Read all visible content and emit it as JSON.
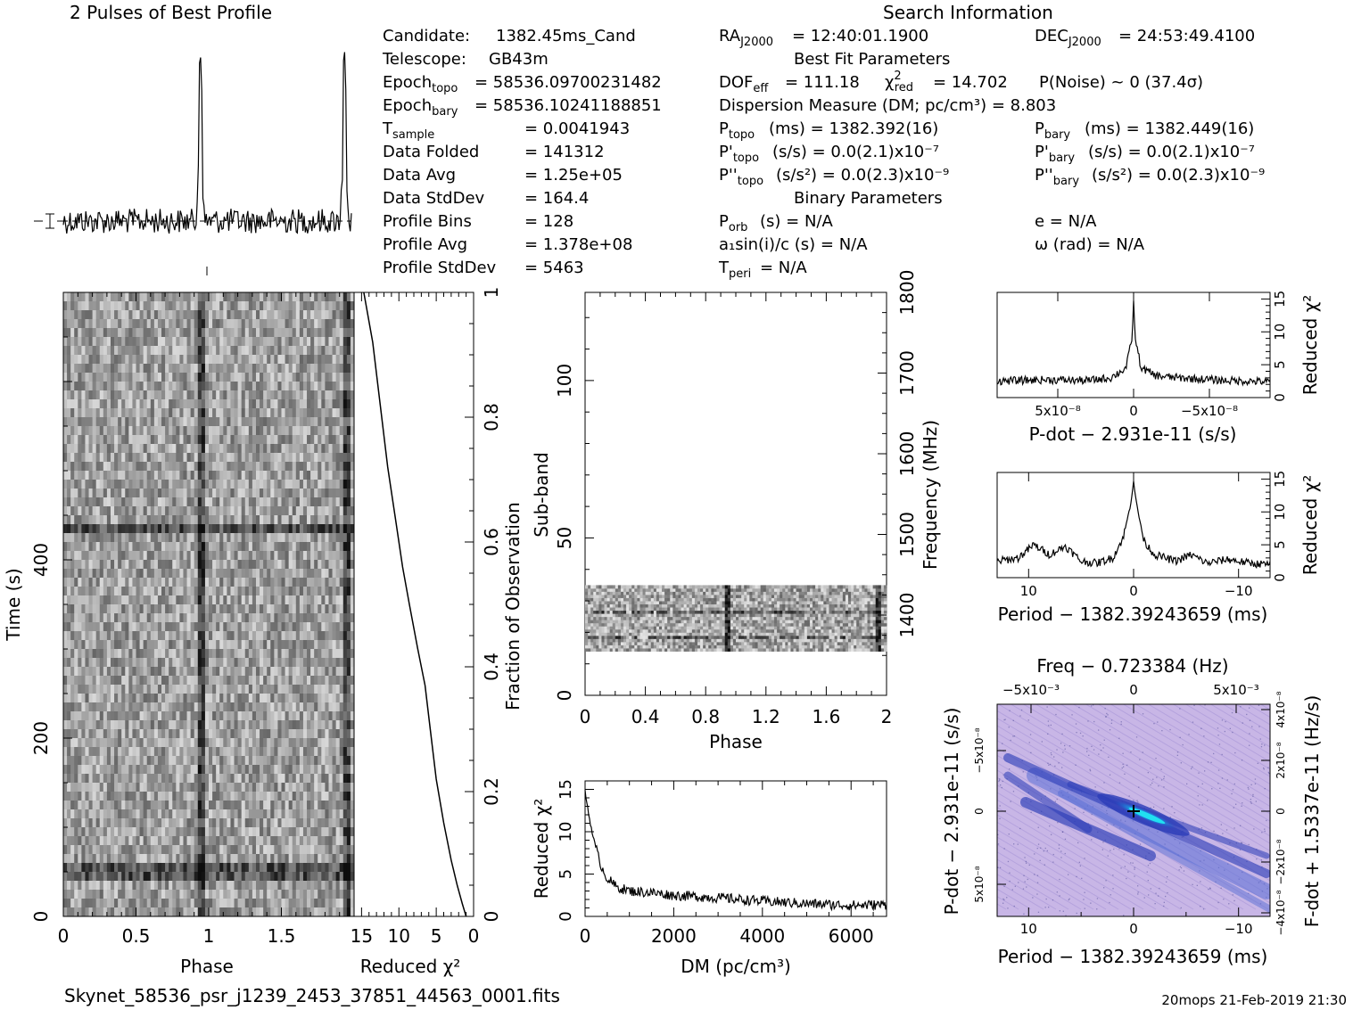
{
  "header": {
    "profile_title": "2 Pulses of Best Profile",
    "search_title": "Search Information",
    "best_fit_title": "Best Fit Parameters",
    "binary_title": "Binary Parameters"
  },
  "candidate_info": [
    {
      "label": "Candidate:",
      "value": "1382.45ms_Cand"
    },
    {
      "label": "Telescope:",
      "value": "GB43m"
    },
    {
      "label": "Epoch",
      "sub": "topo",
      "value": "= 58536.09700231482"
    },
    {
      "label": "Epoch",
      "sub": "bary",
      "value": "= 58536.10241188851"
    },
    {
      "label": "T",
      "sub": "sample",
      "value": "=   0.0041943"
    },
    {
      "label": "Data Folded",
      "value": "=   141312"
    },
    {
      "label": "Data Avg",
      "value": "=   1.25e+05"
    },
    {
      "label": "Data StdDev",
      "value": "=   164.4"
    },
    {
      "label": "Profile Bins",
      "value": "=   128"
    },
    {
      "label": "Profile Avg",
      "value": "=   1.378e+08"
    },
    {
      "label": "Profile StdDev",
      "value": "=   5463"
    }
  ],
  "search_info": {
    "ra": "= 12:40:01.1900",
    "dec": "= 24:53:49.4100",
    "dof_line": "= 111.18",
    "chi2_line": "= 14.702",
    "pnoise_line": "P(Noise) ~ 0    (37.4σ)",
    "dm_line": "Dispersion Measure (DM; pc/cm³) = 8.803",
    "p_topo": "(ms) =  1382.392(16)",
    "p_bary": "(ms) =  1382.449(16)",
    "pd_topo": "(s/s) = 0.0(2.1)x10⁻⁷",
    "pd_bary": "(s/s) = 0.0(2.1)x10⁻⁷",
    "pdd_topo": "(s/s²) = 0.0(2.3)x10⁻⁹",
    "pdd_bary": "(s/s²) = 0.0(2.3)x10⁻⁹",
    "porb": "(s) = N/A",
    "e": "e = N/A",
    "a1": "a₁sin(i)/c (s) = N/A",
    "omega": "ω (rad) = N/A",
    "tperi": "= N/A"
  },
  "labels": {
    "phase": "Phase",
    "time": "Time (s)",
    "reduced_chi2": "Reduced χ²",
    "fraction": "Fraction of Observation",
    "subband": "Sub-band",
    "frequency": "Frequency (MHz)",
    "dm_axis": "DM (pc/cm³)",
    "pdot_axis": "P-dot − 2.931e-11 (s/s)",
    "period_axis": "Period − 1382.39243659 (ms)",
    "freq_axis": "Freq − 0.723384 (Hz)",
    "fdot_axis": "F-dot + 1.5337e-11 (Hz/s)"
  },
  "footer": {
    "filename": "Skynet_58536_psr_j1239_2453_37851_44563_0001.fits",
    "stamp": "20mops 21-Feb-2019 21:30"
  },
  "chart_data": [
    {
      "type": "line",
      "title": "2 Pulses of Best Profile",
      "xlim": [
        0,
        2
      ],
      "peaks_phase": [
        0.95,
        1.95
      ],
      "peak_height_rel": 1.0,
      "baseline_rel": 0.05
    },
    {
      "type": "heatmap",
      "name": "time-vs-phase",
      "xlabel": "Phase",
      "ylabel": "Time (s)",
      "xlim": [
        0,
        2
      ],
      "ylim": [
        0,
        700
      ],
      "x_ticks": [
        "0",
        "0.5",
        "1",
        "1.5"
      ],
      "y_ticks": [
        "0",
        "200",
        "400"
      ]
    },
    {
      "type": "line",
      "name": "cumulative-reduced-chi2",
      "xlabel": "Reduced χ²",
      "ylabel": "Fraction of Observation",
      "xlim": [
        16,
        0
      ],
      "ylim": [
        0,
        1
      ],
      "x_ticks": [
        "15",
        "10",
        "5",
        "0"
      ],
      "y_ticks": [
        "0.2",
        "0.4",
        "0.6",
        "0.8",
        "1"
      ],
      "x": [
        1,
        1.5,
        2.2,
        3.0,
        4.0,
        5.0,
        5.8,
        6.5,
        7.5,
        8.6,
        9.5,
        10.5,
        11.5,
        12.5,
        13.5,
        14.7
      ],
      "y": [
        0.0,
        0.02,
        0.05,
        0.09,
        0.15,
        0.22,
        0.3,
        0.37,
        0.43,
        0.5,
        0.56,
        0.64,
        0.72,
        0.82,
        0.92,
        1.0
      ]
    },
    {
      "type": "heatmap",
      "name": "subband-vs-phase",
      "xlabel": "Phase",
      "ylabel": "Sub-band",
      "xlim": [
        0,
        2
      ],
      "ylim": [
        0,
        128
      ],
      "x_ticks": [
        "0",
        "0.4",
        "0.8",
        "1.2",
        "1.6",
        "2"
      ],
      "y_ticks": [
        "0",
        "50",
        "100"
      ],
      "freq_ticks": [
        "1400",
        "1500",
        "1600",
        "1700",
        "1800"
      ],
      "active_subbands": [
        14,
        35
      ],
      "pulse_phases": [
        0.95,
        1.95
      ]
    },
    {
      "type": "line",
      "name": "reduced-chi2-vs-dm",
      "xlabel": "DM (pc/cm³)",
      "ylabel": "Reduced χ²",
      "xlim": [
        0,
        6800
      ],
      "ylim": [
        0,
        16
      ],
      "x_ticks": [
        "0",
        "2000",
        "4000",
        "6000"
      ],
      "y_ticks": [
        "0",
        "5",
        "10",
        "15"
      ],
      "x": [
        0,
        100,
        200,
        300,
        400,
        500,
        700,
        1000,
        1500,
        2000,
        3000,
        4000,
        5000,
        6000,
        6800
      ],
      "y": [
        14.7,
        11.5,
        9.0,
        7.0,
        5.5,
        4.5,
        3.5,
        3.0,
        2.8,
        2.5,
        2.2,
        1.8,
        1.5,
        1.3,
        1.4
      ]
    },
    {
      "type": "line",
      "name": "reduced-chi2-vs-pdot",
      "xlabel": "P-dot − 2.931e-11 (s/s)",
      "ylabel": "Reduced χ²",
      "xlim": [
        9e-08,
        -9e-08
      ],
      "ylim": [
        0,
        16
      ],
      "x_ticks": [
        "5x10⁻⁸",
        "0",
        "−5x10⁻⁸"
      ],
      "y_ticks": [
        "0",
        "5",
        "10",
        "15"
      ],
      "x": [
        9e-08,
        6e-08,
        3e-08,
        1.5e-08,
        5e-09,
        1e-09,
        0,
        -1e-09,
        -5e-09,
        -1.5e-08,
        -3e-08,
        -6e-08,
        -9e-08
      ],
      "y": [
        2.5,
        2.7,
        2.6,
        3.0,
        4.5,
        9.0,
        14.7,
        9.0,
        4.5,
        3.3,
        3.0,
        2.6,
        2.4
      ]
    },
    {
      "type": "line",
      "name": "reduced-chi2-vs-period",
      "xlabel": "Period − 1382.39243659 (ms)",
      "ylabel": "Reduced χ²",
      "xlim": [
        13,
        -13
      ],
      "ylim": [
        0,
        16
      ],
      "x_ticks": [
        "10",
        "0",
        "−10"
      ],
      "y_ticks": [
        "0",
        "5",
        "10",
        "15"
      ],
      "x": [
        13,
        11,
        9.5,
        8,
        6.5,
        5,
        3.5,
        2,
        1,
        0.3,
        0,
        -0.3,
        -1,
        -2,
        -4,
        -5.5,
        -7,
        -9,
        -11,
        -13
      ],
      "y": [
        2.5,
        3.0,
        5.0,
        3.5,
        4.8,
        2.5,
        2.2,
        3.0,
        6.0,
        11.0,
        14.7,
        11.0,
        5.5,
        3.5,
        2.5,
        3.5,
        2.2,
        2.8,
        2.2,
        2.0
      ]
    },
    {
      "type": "heatmap",
      "name": "pdot-vs-period",
      "xlabel": "Period − 1382.39243659 (ms)",
      "ylabel": "P-dot − 2.931e-11 (s/s)",
      "x_ticks": [
        "10",
        "0",
        "−10"
      ],
      "y_ticks": [
        "−5x10⁻⁸",
        "0",
        "5x10⁻⁸"
      ],
      "top_ticks": [
        "−5x10⁻³",
        "0",
        "5x10⁻³"
      ],
      "right_ticks": [
        "4x10⁻⁸",
        "2x10⁻⁸",
        "0",
        "−2x10⁻⁸",
        "−4x10⁻⁸"
      ],
      "colors": {
        "background": "#c8b6e6",
        "mid": "#5a6fd6",
        "low": "#2a3cb8",
        "peak": "#21e0f0"
      }
    }
  ]
}
